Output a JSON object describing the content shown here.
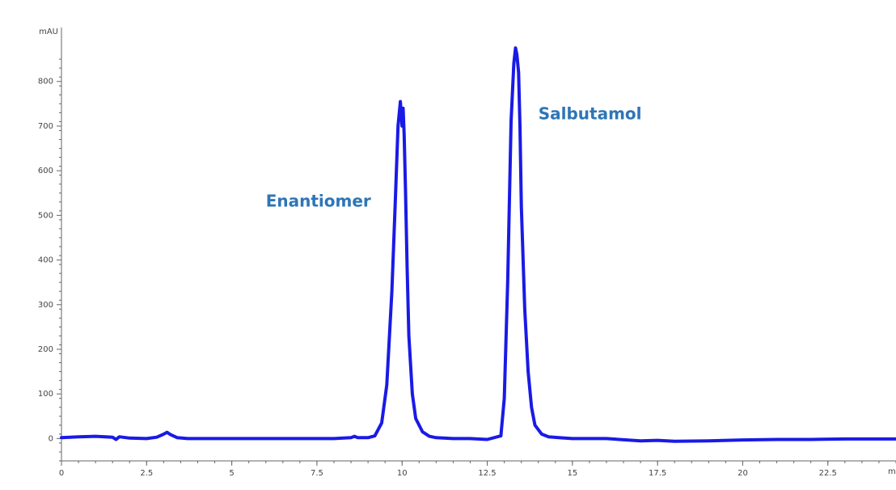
{
  "chart_data": {
    "type": "line",
    "title": "",
    "xlabel": "",
    "ylabel": "",
    "y_unit_label": "mAU",
    "x_unit_label": "mi",
    "xlim": [
      0,
      24.5
    ],
    "ylim": [
      -50,
      910
    ],
    "x_ticks": [
      0,
      2.5,
      5,
      7.5,
      10,
      12.5,
      15,
      17.5,
      20,
      22.5
    ],
    "x_tick_labels": [
      "0",
      "2.5",
      "5",
      "7.5",
      "10",
      "12.5",
      "15",
      "17.5",
      "20",
      "22.5"
    ],
    "y_ticks": [
      0,
      100,
      200,
      300,
      400,
      500,
      600,
      700,
      800
    ],
    "y_tick_labels": [
      "0",
      "100",
      "200",
      "300",
      "400",
      "500",
      "600",
      "700",
      "800"
    ],
    "grid": false,
    "series": [
      {
        "color": "#1a1ae6",
        "x": [
          0,
          0.5,
          1.0,
          1.5,
          1.6,
          1.7,
          2.0,
          2.5,
          2.8,
          3.0,
          3.1,
          3.2,
          3.4,
          3.7,
          4.0,
          5.0,
          6.0,
          7.0,
          8.0,
          8.5,
          8.6,
          8.7,
          9.0,
          9.2,
          9.4,
          9.55,
          9.7,
          9.8,
          9.88,
          9.95,
          10.0,
          10.03,
          10.06,
          10.1,
          10.15,
          10.2,
          10.3,
          10.4,
          10.6,
          10.8,
          11.0,
          11.5,
          12.0,
          12.5,
          12.9,
          13.0,
          13.1,
          13.2,
          13.28,
          13.33,
          13.37,
          13.42,
          13.46,
          13.5,
          13.6,
          13.7,
          13.8,
          13.9,
          14.1,
          14.3,
          14.6,
          15.0,
          16.0,
          17.0,
          17.5,
          18.0,
          19.0,
          20.0,
          21.0,
          22.0,
          23.0,
          24.0,
          24.5
        ],
        "y": [
          2,
          4,
          5,
          3,
          -2,
          4,
          1,
          0,
          3,
          10,
          14,
          9,
          2,
          0,
          0,
          0,
          0,
          0,
          0,
          2,
          5,
          2,
          2,
          6,
          35,
          120,
          330,
          530,
          700,
          755,
          700,
          740,
          680,
          560,
          380,
          230,
          100,
          45,
          15,
          5,
          2,
          0,
          0,
          -2,
          6,
          90,
          350,
          710,
          840,
          875,
          860,
          820,
          700,
          520,
          290,
          150,
          70,
          30,
          10,
          4,
          2,
          0,
          0,
          -5,
          -4,
          -6,
          -5,
          -3,
          -2,
          -2,
          -1,
          -1,
          -1
        ]
      }
    ],
    "annotations": [
      {
        "text": "Enantiomer",
        "x": 6.0,
        "y": 520,
        "color": "#2e75b6"
      },
      {
        "text": "Salbutamol",
        "x": 14.0,
        "y": 715,
        "color": "#2e75b6"
      }
    ]
  }
}
